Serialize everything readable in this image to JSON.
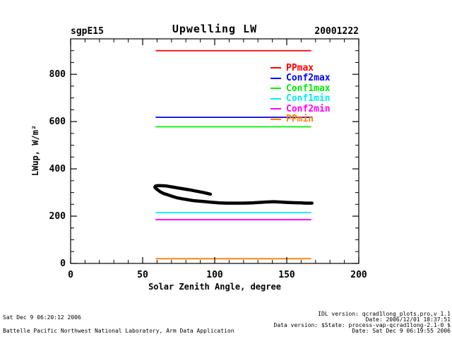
{
  "header": {
    "site": "sgpE15",
    "title": "Upwelling LW",
    "date": "20001222"
  },
  "chart_data": {
    "type": "line",
    "title": "Upwelling LW",
    "xlabel": "Solar Zenith Angle, degree",
    "ylabel": "LWup, W/m²",
    "xlim": [
      0,
      200
    ],
    "ylim": [
      0,
      950
    ],
    "x_ticks": [
      0,
      50,
      100,
      150,
      200
    ],
    "y_ticks": [
      0,
      200,
      400,
      600,
      800
    ],
    "x_minor_step": 10,
    "y_minor_step": 50,
    "grid": false,
    "legend_position": "upper-right-inside",
    "limit_lines": [
      {
        "name": "PPmax",
        "color": "#ff0000",
        "value": 900,
        "x_start": 59,
        "x_end": 167
      },
      {
        "name": "Conf2max",
        "color": "#0000ff",
        "value": 618,
        "x_start": 59,
        "x_end": 167
      },
      {
        "name": "Conf1max",
        "color": "#00ee00",
        "value": 578,
        "x_start": 59,
        "x_end": 167
      },
      {
        "name": "Conf1min",
        "color": "#00eeee",
        "value": 215,
        "x_start": 59,
        "x_end": 167
      },
      {
        "name": "Conf2min",
        "color": "#ff00ff",
        "value": 185,
        "x_start": 59,
        "x_end": 167
      },
      {
        "name": "PPmin",
        "color": "#ff8000",
        "value": 20,
        "x_start": 59,
        "x_end": 167
      }
    ],
    "series": [
      {
        "name": "LWup",
        "color": "#000000",
        "points": [
          [
            97,
            293
          ],
          [
            93,
            299
          ],
          [
            88,
            305
          ],
          [
            82,
            312
          ],
          [
            76,
            318
          ],
          [
            71,
            323
          ],
          [
            66,
            328
          ],
          [
            62.5,
            329
          ],
          [
            60,
            329
          ],
          [
            58.8,
            327
          ],
          [
            58.5,
            322
          ],
          [
            60,
            313
          ],
          [
            62.5,
            302
          ],
          [
            65,
            295
          ],
          [
            67.5,
            290
          ],
          [
            70,
            285
          ],
          [
            73.5,
            278
          ],
          [
            77,
            274
          ],
          [
            82,
            269
          ],
          [
            86,
            265
          ],
          [
            92,
            262
          ],
          [
            97,
            259
          ],
          [
            103,
            256
          ],
          [
            108,
            255
          ],
          [
            114,
            255
          ],
          [
            120,
            255
          ],
          [
            126,
            256
          ],
          [
            131,
            258
          ],
          [
            136,
            260
          ],
          [
            141,
            261
          ],
          [
            145,
            260
          ],
          [
            150,
            258
          ],
          [
            155,
            257
          ],
          [
            160,
            256
          ],
          [
            163,
            255
          ],
          [
            167.5,
            255
          ]
        ]
      }
    ]
  },
  "footer": {
    "left_line1": "Sat Dec  9 06:20:12 2006",
    "left_line2": "Battelle Pacific Northwest National Laboratory, Arm Data Application",
    "right_line1": "IDL version: qcrad1long_plots.pro,v 1.1",
    "right_line2": "Date: 2006/12/01 18:37:51",
    "right_line3": "Data version: $State: process-vap-qcrad1long-2.1-0 $",
    "right_line4": "Date: Sat Dec  9 06:19:55 2006"
  }
}
